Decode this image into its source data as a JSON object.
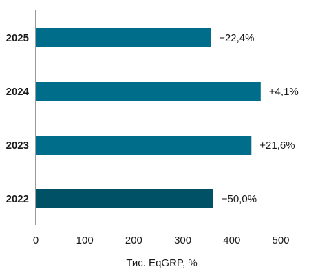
{
  "chart_data": {
    "type": "bar",
    "orientation": "horizontal",
    "categories": [
      "2025",
      "2024",
      "2023",
      "2022"
    ],
    "values": [
      357,
      459,
      440,
      362
    ],
    "data_labels": [
      "−22,4%",
      "+4,1%",
      "+21,6%",
      "−50,0%"
    ],
    "xlabel": "Тис. EqGRP, %",
    "ylabel": "",
    "xlim": [
      0,
      500
    ],
    "xticks": [
      0,
      100,
      200,
      300,
      400,
      500
    ],
    "grid": false,
    "colors": {
      "bar": "#006e8a",
      "bar_highlight": "#005066",
      "highlight_category": "2022",
      "axis": "#333333"
    }
  }
}
